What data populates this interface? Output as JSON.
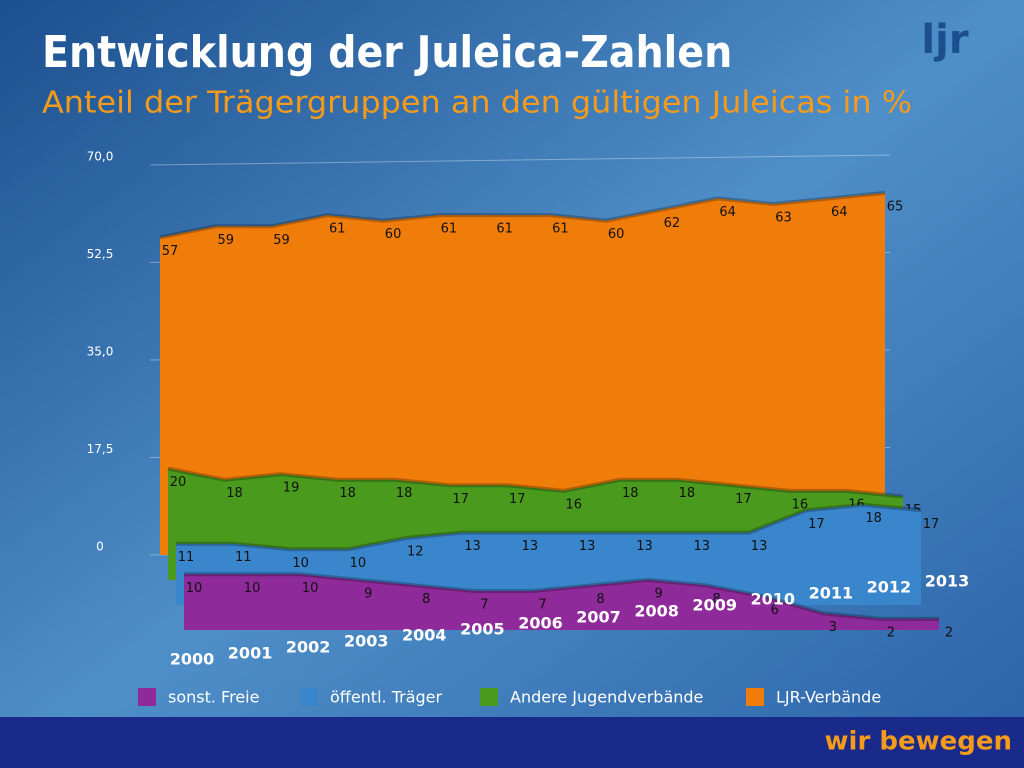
{
  "chart_data": {
    "type": "area",
    "title": "Entwicklung der Juleica-Zahlen",
    "subtitle": "Anteil der Trägergruppen an den gültigen Juleicas in %",
    "categories": [
      "2000",
      "2001",
      "2002",
      "2003",
      "2004",
      "2005",
      "2006",
      "2007",
      "2008",
      "2009",
      "2010",
      "2011",
      "2012",
      "2013"
    ],
    "series": [
      {
        "name": "LJR-Verbände",
        "color": "#f07d0a",
        "values": [
          57,
          59,
          59,
          61,
          60,
          61,
          61,
          61,
          60,
          62,
          64,
          63,
          64,
          65
        ]
      },
      {
        "name": "Andere Jugendverbände",
        "color": "#4a9a1e",
        "values": [
          20,
          18,
          19,
          18,
          18,
          17,
          17,
          16,
          18,
          18,
          17,
          16,
          16,
          15
        ]
      },
      {
        "name": "öffentl. Träger",
        "color": "#3a86cc",
        "values": [
          11,
          11,
          10,
          10,
          12,
          13,
          13,
          13,
          13,
          13,
          13,
          17,
          18,
          17
        ]
      },
      {
        "name": "sonst. Freie",
        "color": "#8e2a9a",
        "values": [
          10,
          10,
          10,
          9,
          8,
          7,
          7,
          8,
          9,
          8,
          6,
          3,
          2,
          2
        ]
      }
    ],
    "ylim": [
      0,
      70
    ],
    "yticks": [
      {
        "value": 0,
        "label": "0"
      },
      {
        "value": 17.5,
        "label": "17,5"
      },
      {
        "value": 35,
        "label": "35,0"
      },
      {
        "value": 52.5,
        "label": "52,5"
      },
      {
        "value": 70,
        "label": "70,0"
      }
    ],
    "grid": true
  },
  "logo": "ljr",
  "footer": "wir bewegen"
}
